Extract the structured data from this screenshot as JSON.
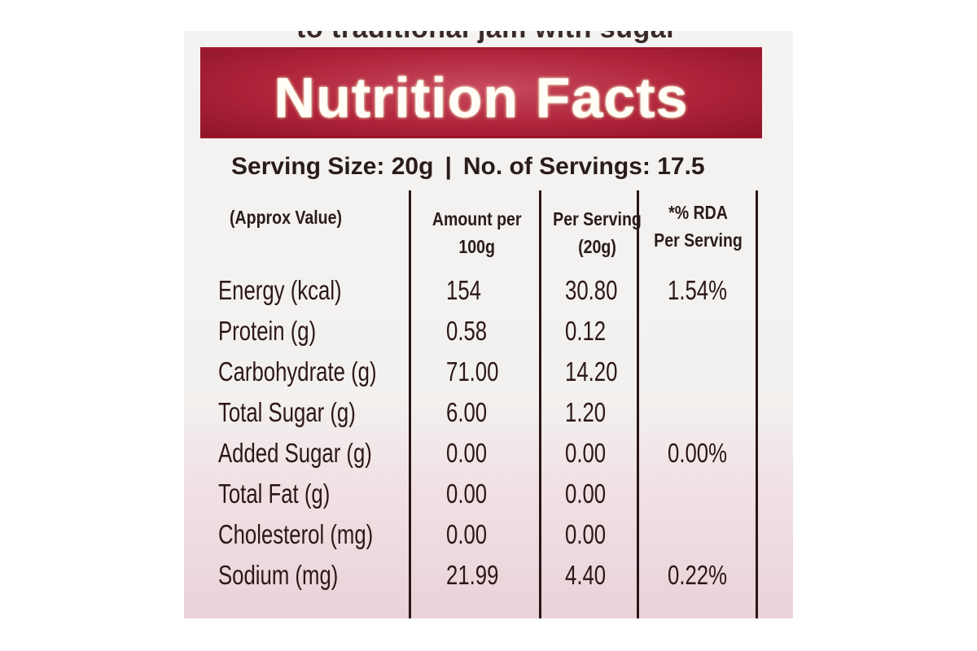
{
  "top_text": "to traditional jam with sugar",
  "title": "Nutrition Facts",
  "serving": {
    "size": "Serving Size: 20g",
    "separator": "|",
    "count": "No. of Servings: 17.5"
  },
  "headers": {
    "name": "(Approx Value)",
    "amount_line1": "Amount per",
    "amount_line2": "100g",
    "per_serving_line1": "Per Serving",
    "per_serving_line2": "(20g)",
    "rda_line1": "*% RDA",
    "rda_line2": "Per Serving"
  },
  "rows": [
    {
      "name": "Energy (kcal)",
      "amount": "154",
      "per_serving": "30.80",
      "rda": "1.54%"
    },
    {
      "name": "Protein (g)",
      "amount": "0.58",
      "per_serving": "0.12",
      "rda": ""
    },
    {
      "name": "Carbohydrate (g)",
      "amount": "71.00",
      "per_serving": "14.20",
      "rda": ""
    },
    {
      "name": "Total Sugar (g)",
      "amount": "6.00",
      "per_serving": "1.20",
      "rda": ""
    },
    {
      "name": "Added Sugar (g)",
      "amount": "0.00",
      "per_serving": "0.00",
      "rda": "0.00%"
    },
    {
      "name": "Total Fat (g)",
      "amount": "0.00",
      "per_serving": "0.00",
      "rda": ""
    },
    {
      "name": "Cholesterol (mg)",
      "amount": "0.00",
      "per_serving": "0.00",
      "rda": ""
    },
    {
      "name": "Sodium (mg)",
      "amount": "21.99",
      "per_serving": "4.40",
      "rda": "0.22%"
    }
  ],
  "colors": {
    "banner": "#b0243a",
    "banner_text": "#fffdf6",
    "text": "#2a1c1c"
  }
}
